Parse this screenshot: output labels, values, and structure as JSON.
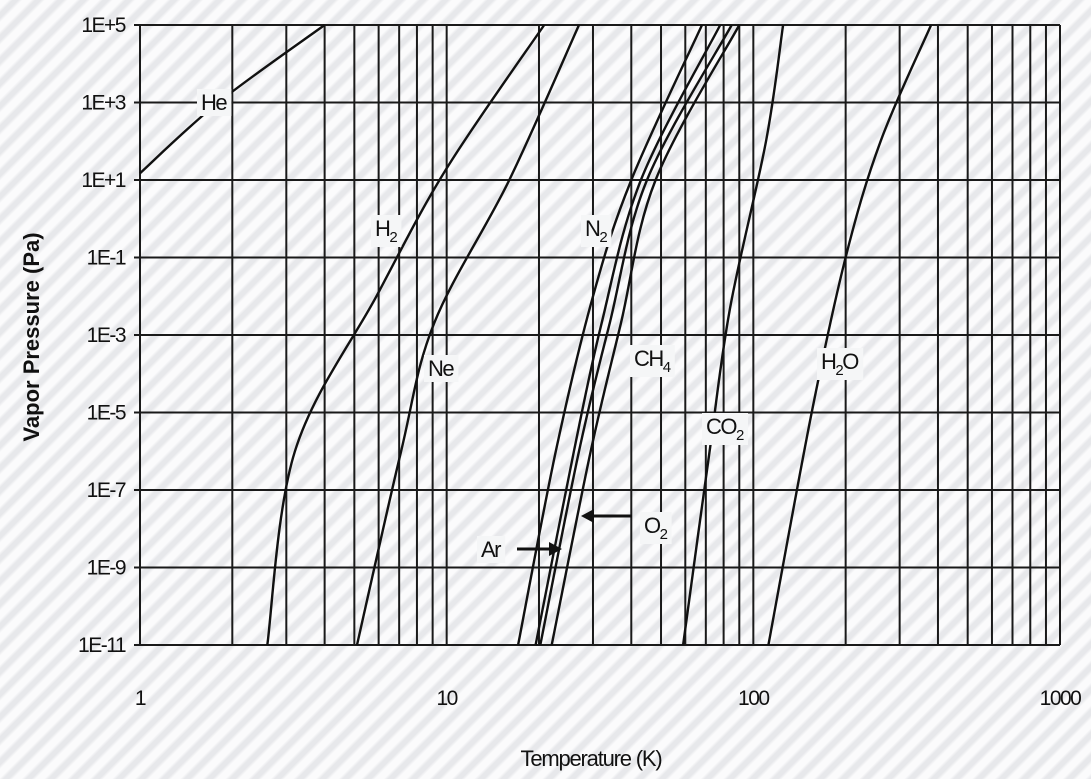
{
  "chart_data": {
    "type": "line",
    "title": "",
    "xlabel": "Temperature (K)",
    "ylabel": "Vapor Pressure (Pa)",
    "x_scale": "log",
    "y_scale": "log",
    "xlim": [
      1,
      1000
    ],
    "ylim": [
      1e-11,
      100000.0
    ],
    "grid": true,
    "x_ticks": [
      "1",
      "10",
      "100",
      "1000"
    ],
    "y_ticks": [
      "1E-11",
      "1E-9",
      "1E-7",
      "1E-5",
      "1E-3",
      "1E-1",
      "1E+1",
      "1E+3",
      "1E+5"
    ],
    "series": [
      {
        "name": "He",
        "points": [
          [
            1.0,
            15
          ],
          [
            1.8,
            1000
          ],
          [
            4.0,
            100000
          ]
        ]
      },
      {
        "name": "H2",
        "points": [
          [
            2.6,
            1e-11
          ],
          [
            3.2,
            1e-06
          ],
          [
            5.9,
            0.01
          ],
          [
            10.0,
            20
          ],
          [
            20.8,
            100000
          ]
        ]
      },
      {
        "name": "Ne",
        "points": [
          [
            5.1,
            1e-11
          ],
          [
            7.1,
            1e-06
          ],
          [
            9.1,
            0.002
          ],
          [
            16.0,
            10
          ],
          [
            27.0,
            100000
          ]
        ]
      },
      {
        "name": "Ar",
        "points": [
          [
            19.5,
            1e-11
          ],
          [
            26.0,
            1e-06
          ],
          [
            32.0,
            0.002
          ],
          [
            43.0,
            10
          ],
          [
            78.0,
            100000
          ]
        ]
      },
      {
        "name": "N2",
        "points": [
          [
            17.1,
            1e-11
          ],
          [
            22.7,
            1e-06
          ],
          [
            30.0,
            0.01
          ],
          [
            40.0,
            10
          ],
          [
            68.0,
            100000
          ]
        ]
      },
      {
        "name": "O2",
        "points": [
          [
            20.2,
            1e-11
          ],
          [
            27.0,
            1e-06
          ],
          [
            34.0,
            0.002
          ],
          [
            45.0,
            10
          ],
          [
            85.0,
            100000
          ]
        ]
      },
      {
        "name": "CH4",
        "points": [
          [
            22.0,
            1e-11
          ],
          [
            29.5,
            1e-06
          ],
          [
            37.0,
            0.002
          ],
          [
            48.0,
            10
          ],
          [
            90.0,
            100000
          ]
        ]
      },
      {
        "name": "CO2",
        "points": [
          [
            59.0,
            1e-11
          ],
          [
            72.0,
            1e-06
          ],
          [
            84.0,
            0.005
          ],
          [
            110.0,
            100
          ],
          [
            125.0,
            100000
          ]
        ]
      },
      {
        "name": "H2O",
        "points": [
          [
            112.0,
            1e-11
          ],
          [
            155.0,
            1e-05
          ],
          [
            200.0,
            0.1
          ],
          [
            260.0,
            100
          ],
          [
            380.0,
            100000
          ]
        ]
      }
    ],
    "annotations": [
      {
        "text": "He"
      },
      {
        "text": "H",
        "sub": "2"
      },
      {
        "text": "Ne"
      },
      {
        "text": "N",
        "sub": "2"
      },
      {
        "text": "CH",
        "sub": "4"
      },
      {
        "text": "H",
        "sub": "2",
        "rest": "O"
      },
      {
        "text": "CO",
        "sub": "2"
      },
      {
        "text": "O",
        "sub": "2"
      },
      {
        "text": "Ar"
      }
    ],
    "colors": {
      "line": "#111111",
      "grid": "#1a1a1a",
      "background": "#f1f2f4"
    }
  }
}
